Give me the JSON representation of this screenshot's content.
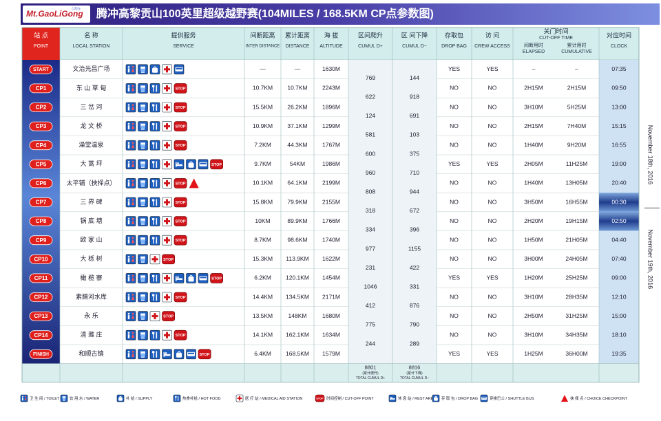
{
  "header": {
    "logo": "Mt.GaoLiGong",
    "logo_sub": "Ultra",
    "title": "腾冲高黎贡山100英里超级越野赛(104MILES / 168.5KM CP点参数图)"
  },
  "columns": [
    {
      "cn": "站 点",
      "en": "POINT"
    },
    {
      "cn": "名 称",
      "en": "LOCAL STATION"
    },
    {
      "cn": "提供服务",
      "en": "SERVICE"
    },
    {
      "cn": "间断距离",
      "en": "INTER DISTANCE"
    },
    {
      "cn": "累计距离",
      "en": "DISTANCE"
    },
    {
      "cn": "海 拔",
      "en": "ALTITUDE"
    },
    {
      "cn": "区间爬升",
      "en": "CUMUL D+"
    },
    {
      "cn": "区 间下降",
      "en": "CUMUL D−"
    },
    {
      "cn": "存取包",
      "en": "DROP BAG"
    },
    {
      "cn": "访 问",
      "en": "CREW ACCESS"
    },
    {
      "cn": "关门时间",
      "en": "CUT-OFF TIME",
      "sub": [
        {
          "cn": "间断用时",
          "en": "ELAPSED"
        },
        {
          "cn": "累计用时",
          "en": "CUMULATIVE"
        }
      ]
    },
    {
      "cn": "对应时间",
      "en": "CLOCK"
    }
  ],
  "rows": [
    {
      "point": "START",
      "name": "文治光昌广场",
      "services": [
        "toilet",
        "water",
        "supply",
        "medical",
        "bus"
      ],
      "inter": "—",
      "distance": "—",
      "altitude": "1630M",
      "drop_bag": "YES",
      "crew": "YES",
      "elapsed": "–",
      "cumulative": "–",
      "clock": "07:35"
    },
    {
      "point": "CP1",
      "name": "东 山 草 甸",
      "services": [
        "toilet",
        "water",
        "food",
        "medical",
        "stop"
      ],
      "inter": "10.7KM",
      "distance": "10.7KM",
      "altitude": "2243M",
      "drop_bag": "NO",
      "crew": "NO",
      "elapsed": "2H15M",
      "cumulative": "2H15M",
      "clock": "09:50"
    },
    {
      "point": "CP2",
      "name": "三 岔 河",
      "services": [
        "toilet",
        "water",
        "food",
        "medical",
        "stop"
      ],
      "inter": "15.5KM",
      "distance": "26.2KM",
      "altitude": "1896M",
      "drop_bag": "NO",
      "crew": "NO",
      "elapsed": "3H10M",
      "cumulative": "5H25M",
      "clock": "13:00"
    },
    {
      "point": "CP3",
      "name": "龙 文 桥",
      "services": [
        "toilet",
        "water",
        "food",
        "medical",
        "stop"
      ],
      "inter": "10.9KM",
      "distance": "37.1KM",
      "altitude": "1299M",
      "drop_bag": "NO",
      "crew": "NO",
      "elapsed": "2H15M",
      "cumulative": "7H40M",
      "clock": "15:15"
    },
    {
      "point": "CP4",
      "name": "澡堂温泉",
      "services": [
        "toilet",
        "water",
        "food",
        "medical",
        "stop"
      ],
      "inter": "7.2KM",
      "distance": "44.3KM",
      "altitude": "1767M",
      "drop_bag": "NO",
      "crew": "NO",
      "elapsed": "1H40M",
      "cumulative": "9H20M",
      "clock": "16:55"
    },
    {
      "point": "CP5",
      "name": "大 蒿 坪",
      "services": [
        "toilet",
        "water",
        "food",
        "medical",
        "rest",
        "dropbag",
        "bus",
        "stop"
      ],
      "inter": "9.7KM",
      "distance": "54KM",
      "altitude": "1986M",
      "drop_bag": "YES",
      "crew": "YES",
      "elapsed": "2H05M",
      "cumulative": "11H25M",
      "clock": "19:00"
    },
    {
      "point": "CP6",
      "name": "太平铺（抉择点）",
      "services": [
        "toilet",
        "water",
        "food",
        "medical",
        "stop",
        "choice"
      ],
      "inter": "10.1KM",
      "distance": "64.1KM",
      "altitude": "2199M",
      "drop_bag": "NO",
      "crew": "NO",
      "elapsed": "1H40M",
      "cumulative": "13H05M",
      "clock": "20:40"
    },
    {
      "point": "CP7",
      "name": "三 界 碑",
      "services": [
        "toilet",
        "water",
        "food",
        "medical",
        "stop"
      ],
      "inter": "15.8KM",
      "distance": "79.9KM",
      "altitude": "2155M",
      "drop_bag": "NO",
      "crew": "NO",
      "elapsed": "3H50M",
      "cumulative": "16H55M",
      "clock": "00:30",
      "night": true
    },
    {
      "point": "CP8",
      "name": "锅 底 塘",
      "services": [
        "toilet",
        "water",
        "food",
        "medical",
        "stop"
      ],
      "inter": "10KM",
      "distance": "89.9KM",
      "altitude": "1766M",
      "drop_bag": "NO",
      "crew": "NO",
      "elapsed": "2H20M",
      "cumulative": "19H15M",
      "clock": "02:50",
      "night": true
    },
    {
      "point": "CP9",
      "name": "欧 家 山",
      "services": [
        "toilet",
        "water",
        "food",
        "medical",
        "stop"
      ],
      "inter": "8.7KM",
      "distance": "98.6KM",
      "altitude": "1740M",
      "drop_bag": "NO",
      "crew": "NO",
      "elapsed": "1H50M",
      "cumulative": "21H05M",
      "clock": "04:40"
    },
    {
      "point": "CP10",
      "name": "大 栎 树",
      "services": [
        "toilet",
        "water",
        "medical",
        "stop"
      ],
      "inter": "15.3KM",
      "distance": "113.9KM",
      "altitude": "1622M",
      "drop_bag": "NO",
      "crew": "NO",
      "elapsed": "3H00M",
      "cumulative": "24H05M",
      "clock": "07:40"
    },
    {
      "point": "CP11",
      "name": "橄 榄 寨",
      "services": [
        "toilet",
        "water",
        "food",
        "medical",
        "rest",
        "dropbag",
        "bus",
        "stop"
      ],
      "inter": "6.2KM",
      "distance": "120.1KM",
      "altitude": "1454M",
      "drop_bag": "YES",
      "crew": "YES",
      "elapsed": "1H20M",
      "cumulative": "25H25M",
      "clock": "09:00"
    },
    {
      "point": "CP12",
      "name": "素腊河水库",
      "services": [
        "toilet",
        "water",
        "food",
        "medical",
        "stop"
      ],
      "inter": "14.4KM",
      "distance": "134.5KM",
      "altitude": "2171M",
      "drop_bag": "NO",
      "crew": "NO",
      "elapsed": "3H10M",
      "cumulative": "28H35M",
      "clock": "12:10"
    },
    {
      "point": "CP13",
      "name": "永 乐",
      "services": [
        "toilet",
        "water",
        "medical",
        "stop"
      ],
      "inter": "13.5KM",
      "distance": "148KM",
      "altitude": "1680M",
      "drop_bag": "NO",
      "crew": "NO",
      "elapsed": "2H50M",
      "cumulative": "31H25M",
      "clock": "15:00"
    },
    {
      "point": "CP14",
      "name": "清 雅 庄",
      "services": [
        "toilet",
        "water",
        "food",
        "medical",
        "stop"
      ],
      "inter": "14.1KM",
      "distance": "162.1KM",
      "altitude": "1634M",
      "drop_bag": "NO",
      "crew": "NO",
      "elapsed": "3H10M",
      "cumulative": "34H35M",
      "clock": "18:10"
    },
    {
      "point": "FINISH",
      "name": "和顺古镇",
      "services": [
        "toilet",
        "water",
        "food",
        "rest",
        "dropbag",
        "bus",
        "stop"
      ],
      "inter": "6.4KM",
      "distance": "168.5KM",
      "altitude": "1579M",
      "drop_bag": "YES",
      "crew": "YES",
      "elapsed": "1H25M",
      "cumulative": "36H00M",
      "clock": "19:35"
    }
  ],
  "segments": [
    {
      "up": 769,
      "down": 144
    },
    {
      "up": 622,
      "down": 918
    },
    {
      "up": 124,
      "down": 691
    },
    {
      "up": 581,
      "down": 103
    },
    {
      "up": 600,
      "down": 375
    },
    {
      "up": 960,
      "down": 710
    },
    {
      "up": 808,
      "down": 944
    },
    {
      "up": 318,
      "down": 672
    },
    {
      "up": 334,
      "down": 396
    },
    {
      "up": 977,
      "down": 1155
    },
    {
      "up": 231,
      "down": 422
    },
    {
      "up": 1046,
      "down": 331
    },
    {
      "up": 412,
      "down": 876
    },
    {
      "up": 775,
      "down": 790
    },
    {
      "up": 244,
      "down": 289
    }
  ],
  "totals": {
    "up": 8801,
    "up_cn": "(累计爬升)",
    "up_en": "TOTAL CUMUL D+",
    "down": 8816,
    "down_cn": "(累计下降)",
    "down_en": "TOTAL CUMUL D−"
  },
  "dates": [
    "November 18th, 2016",
    "November 19th, 2016"
  ],
  "icons": {
    "stop": "STOP"
  },
  "legend": [
    {
      "icon": "toilet",
      "label": "卫 生 间 / TOILET"
    },
    {
      "icon": "water",
      "label": "饮 用 水 / WATER"
    },
    {
      "icon": "supply",
      "label": "补 给 / SUPPLY"
    },
    {
      "icon": "food",
      "label": "热食补给 / HOT FOOD"
    },
    {
      "icon": "medical",
      "label": "医 疗 站 / MEDICAL AID STATION"
    },
    {
      "icon": "stop",
      "label": "时间控制 / CUT-OFF POINT"
    },
    {
      "icon": "rest",
      "label": "休 息 站 / REST AREA"
    },
    {
      "icon": "dropbag",
      "label": "存 取 包 / DROP BAG"
    },
    {
      "icon": "bus",
      "label": "穿梭巴士 / SHUTTLE BUS"
    },
    {
      "icon": "choice",
      "label": "抉 择 点 / CHOICE CHECKPOINT"
    }
  ]
}
